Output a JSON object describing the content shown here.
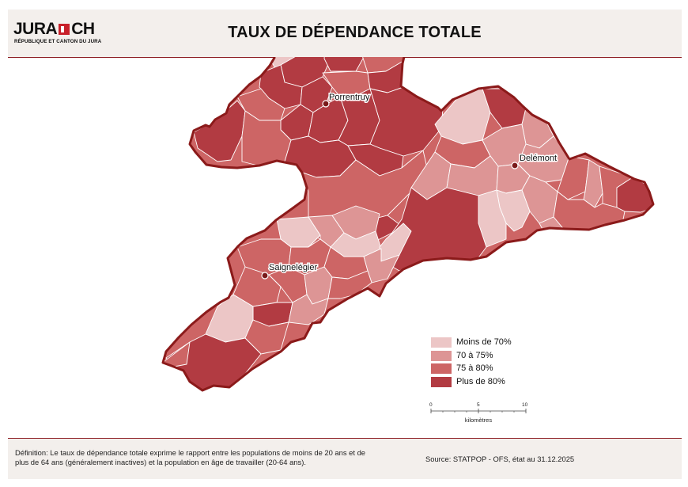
{
  "header": {
    "logo_main_left": "JURA",
    "logo_main_right": "CH",
    "logo_sub": "RÉPUBLIQUE ET CANTON DU JURA",
    "title": "TAUX DE DÉPENDANCE TOTALE"
  },
  "map": {
    "cities": [
      {
        "name": "Porrentruy"
      },
      {
        "name": "Delémont"
      },
      {
        "name": "Saignelégier"
      }
    ],
    "border_color": "#8b1a1a"
  },
  "legend": {
    "items": [
      {
        "label": "Moins de 70%",
        "color": "#ecc6c6"
      },
      {
        "label": "70 à 75%",
        "color": "#dd9595"
      },
      {
        "label": "75 à 80%",
        "color": "#cd6565"
      },
      {
        "label": "Plus de 80%",
        "color": "#b23b42"
      }
    ]
  },
  "scalebar": {
    "ticks": [
      "0",
      "5",
      "10"
    ],
    "unit": "kilomètres"
  },
  "footer": {
    "definition": "Définition: Le taux de dépendance totale exprime le rapport entre les populations de moins de 20 ans et de plus de 64 ans (généralement inactives) et la population en âge de travailler (20-64 ans).",
    "source": "Source: STATPOP - OFS, état au 31.12.2025"
  }
}
